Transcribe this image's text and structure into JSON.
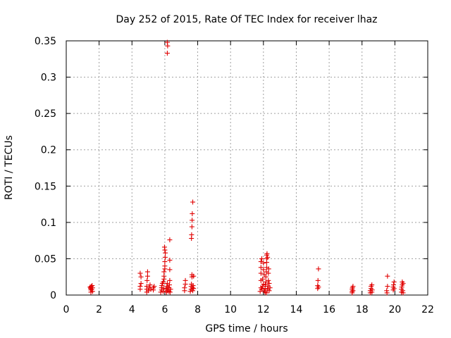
{
  "chart_data": {
    "type": "scatter",
    "title": "Day 252 of 2015, Rate Of TEC Index for receiver lhaz",
    "xlabel": "GPS time / hours",
    "ylabel": "ROTI / TECUs",
    "xlim": [
      0,
      22
    ],
    "ylim": [
      0,
      0.35
    ],
    "grid": true,
    "marker": "+",
    "color": "#e00000",
    "x_ticks": [
      0,
      2,
      4,
      6,
      8,
      10,
      12,
      14,
      16,
      18,
      20,
      22
    ],
    "x_tick_labels": [
      "0",
      "2",
      "4",
      "6",
      "8",
      "10",
      "12",
      "14",
      "16",
      "18",
      "20",
      "22"
    ],
    "y_ticks": [
      0,
      0.05,
      0.1,
      0.15,
      0.2,
      0.25,
      0.3,
      0.35
    ],
    "y_tick_labels": [
      "0",
      "0.05",
      "0.1",
      "0.15",
      "0.2",
      "0.25",
      "0.3",
      "0.35"
    ],
    "series": [
      {
        "name": "ROTI",
        "points": [
          [
            1.5,
            0.004
          ],
          [
            1.5,
            0.007
          ],
          [
            1.5,
            0.01
          ],
          [
            1.52,
            0.012
          ],
          [
            1.55,
            0.008
          ],
          [
            1.58,
            0.013
          ],
          [
            1.6,
            0.005
          ],
          [
            1.6,
            0.01
          ],
          [
            1.45,
            0.011
          ],
          [
            1.48,
            0.009
          ],
          [
            4.5,
            0.008
          ],
          [
            4.5,
            0.012
          ],
          [
            4.55,
            0.016
          ],
          [
            4.55,
            0.025
          ],
          [
            4.5,
            0.03
          ],
          [
            4.9,
            0.004
          ],
          [
            4.9,
            0.008
          ],
          [
            4.9,
            0.012
          ],
          [
            4.92,
            0.02
          ],
          [
            4.95,
            0.026
          ],
          [
            4.95,
            0.032
          ],
          [
            5.0,
            0.006
          ],
          [
            5.05,
            0.01
          ],
          [
            5.1,
            0.014
          ],
          [
            5.15,
            0.008
          ],
          [
            5.3,
            0.007
          ],
          [
            5.3,
            0.01
          ],
          [
            5.35,
            0.012
          ],
          [
            5.75,
            0.004
          ],
          [
            5.8,
            0.007
          ],
          [
            5.8,
            0.01
          ],
          [
            5.82,
            0.013
          ],
          [
            5.85,
            0.016
          ],
          [
            5.9,
            0.018
          ],
          [
            5.95,
            0.022
          ],
          [
            5.95,
            0.026
          ],
          [
            5.95,
            0.032
          ],
          [
            6.0,
            0.036
          ],
          [
            6.0,
            0.04
          ],
          [
            6.0,
            0.046
          ],
          [
            6.02,
            0.052
          ],
          [
            6.03,
            0.058
          ],
          [
            6.0,
            0.062
          ],
          [
            5.98,
            0.066
          ],
          [
            5.9,
            0.005
          ],
          [
            5.92,
            0.009
          ],
          [
            6.1,
            0.004
          ],
          [
            6.1,
            0.008
          ],
          [
            6.12,
            0.012
          ],
          [
            6.15,
            0.016
          ],
          [
            6.15,
            0.006
          ],
          [
            6.18,
            0.01
          ],
          [
            6.15,
            0.333
          ],
          [
            6.17,
            0.343
          ],
          [
            6.15,
            0.348
          ],
          [
            6.25,
            0.005
          ],
          [
            6.25,
            0.01
          ],
          [
            6.28,
            0.014
          ],
          [
            6.3,
            0.02
          ],
          [
            6.3,
            0.035
          ],
          [
            6.3,
            0.048
          ],
          [
            6.3,
            0.076
          ],
          [
            6.32,
            0.004
          ],
          [
            6.35,
            0.008
          ],
          [
            7.2,
            0.006
          ],
          [
            7.2,
            0.01
          ],
          [
            7.25,
            0.015
          ],
          [
            7.25,
            0.02
          ],
          [
            7.55,
            0.005
          ],
          [
            7.6,
            0.008
          ],
          [
            7.6,
            0.012
          ],
          [
            7.62,
            0.015
          ],
          [
            7.65,
            0.025
          ],
          [
            7.65,
            0.028
          ],
          [
            7.68,
            0.01
          ],
          [
            7.7,
            0.006
          ],
          [
            7.72,
            0.013
          ],
          [
            7.75,
            0.026
          ],
          [
            7.75,
            0.009
          ],
          [
            7.62,
            0.078
          ],
          [
            7.63,
            0.083
          ],
          [
            7.65,
            0.094
          ],
          [
            7.66,
            0.103
          ],
          [
            7.67,
            0.112
          ],
          [
            7.7,
            0.128
          ],
          [
            11.8,
            0.005
          ],
          [
            11.85,
            0.01
          ],
          [
            11.85,
            0.02
          ],
          [
            11.85,
            0.03
          ],
          [
            11.85,
            0.038
          ],
          [
            11.85,
            0.046
          ],
          [
            11.9,
            0.05
          ],
          [
            11.9,
            0.008
          ],
          [
            11.95,
            0.012
          ],
          [
            11.95,
            0.022
          ],
          [
            12.0,
            0.015
          ],
          [
            12.0,
            0.035
          ],
          [
            12.0,
            0.044
          ],
          [
            12.05,
            0.006
          ],
          [
            12.05,
            0.028
          ],
          [
            12.1,
            0.004
          ],
          [
            12.1,
            0.009
          ],
          [
            12.12,
            0.014
          ],
          [
            12.15,
            0.018
          ],
          [
            12.15,
            0.025
          ],
          [
            12.18,
            0.032
          ],
          [
            12.2,
            0.038
          ],
          [
            12.2,
            0.045
          ],
          [
            12.2,
            0.05
          ],
          [
            12.2,
            0.055
          ],
          [
            12.22,
            0.057
          ],
          [
            12.25,
            0.052
          ],
          [
            12.25,
            0.008
          ],
          [
            12.28,
            0.012
          ],
          [
            12.3,
            0.02
          ],
          [
            12.3,
            0.03
          ],
          [
            12.32,
            0.036
          ],
          [
            12.35,
            0.006
          ],
          [
            12.35,
            0.016
          ],
          [
            12.18,
            0.003
          ],
          [
            12.4,
            0.01
          ],
          [
            15.3,
            0.009
          ],
          [
            15.3,
            0.013
          ],
          [
            15.32,
            0.02
          ],
          [
            15.35,
            0.036
          ],
          [
            15.35,
            0.011
          ],
          [
            17.4,
            0.005
          ],
          [
            17.4,
            0.008
          ],
          [
            17.42,
            0.01
          ],
          [
            17.45,
            0.006
          ],
          [
            17.45,
            0.012
          ],
          [
            17.4,
            0.003
          ],
          [
            18.5,
            0.003
          ],
          [
            18.5,
            0.006
          ],
          [
            18.55,
            0.009
          ],
          [
            18.55,
            0.012
          ],
          [
            18.6,
            0.014
          ],
          [
            18.62,
            0.007
          ],
          [
            18.6,
            0.004
          ],
          [
            19.5,
            0.006
          ],
          [
            19.55,
            0.012
          ],
          [
            19.55,
            0.026
          ],
          [
            19.52,
            0.003
          ],
          [
            19.9,
            0.007
          ],
          [
            19.9,
            0.011
          ],
          [
            19.92,
            0.014
          ],
          [
            19.95,
            0.018
          ],
          [
            19.95,
            0.009
          ],
          [
            20.4,
            0.004
          ],
          [
            20.4,
            0.008
          ],
          [
            20.42,
            0.011
          ],
          [
            20.45,
            0.014
          ],
          [
            20.45,
            0.018
          ],
          [
            20.48,
            0.006
          ],
          [
            20.5,
            0.003
          ],
          [
            20.5,
            0.016
          ]
        ]
      }
    ]
  }
}
